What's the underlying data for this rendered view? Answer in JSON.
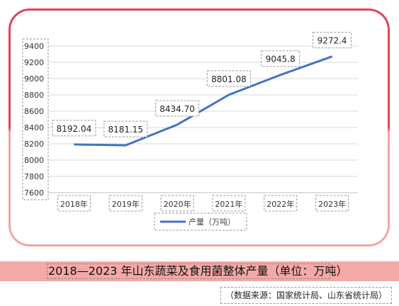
{
  "chart_data": {
    "type": "line",
    "categories": [
      "2018年",
      "2019年",
      "2020年",
      "2021年",
      "2022年",
      "2023年"
    ],
    "series": [
      {
        "name": "产量（万吨）",
        "values": [
          8192.04,
          8181.15,
          8434.7,
          8801.08,
          9045.8,
          9272.4
        ],
        "labels": [
          "8192.04",
          "8181.15",
          "8434.70",
          "8801.08",
          "9045.8",
          "9272.4"
        ],
        "color": "#4472c4"
      }
    ],
    "yticks": [
      "9400",
      "9200",
      "9000",
      "8800",
      "8600",
      "8400",
      "8200",
      "8000",
      "7800",
      "7600"
    ],
    "ylim": [
      7600,
      9400
    ],
    "grid": true,
    "legend_position": "bottom"
  },
  "caption": "2018—2023 年山东蔬菜及食用菌整体产量（单位：万吨）",
  "source": "（数据来源：国家统计局、山东省统计局）",
  "colors": {
    "frame_top": "#e3435c",
    "frame_bottom": "#f2a5a5",
    "caption_band": "#f5a9a6",
    "line": "#4472c4"
  }
}
